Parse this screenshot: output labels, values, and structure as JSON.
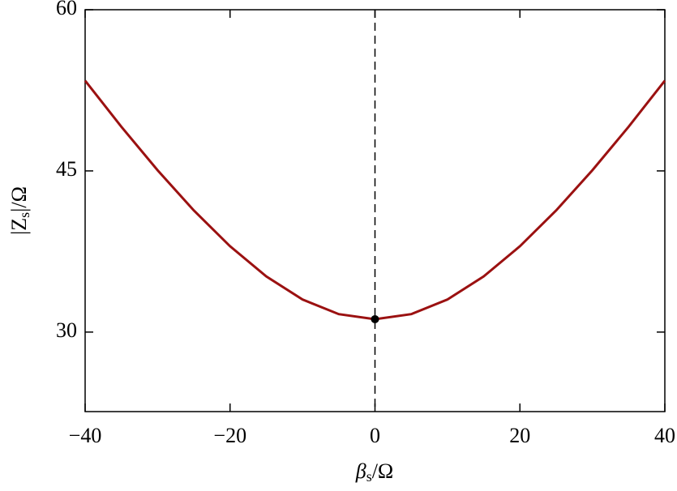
{
  "chart_data": {
    "type": "line",
    "xlabel": {
      "main": "β",
      "sub": "s",
      "rest": "/Ω"
    },
    "ylabel": {
      "pre": "|Z",
      "sub": "s",
      "rest": "|/Ω"
    },
    "x": [
      -40,
      -35,
      -30,
      -25,
      -20,
      -15,
      -10,
      -5,
      0,
      5,
      10,
      15,
      20,
      25,
      30,
      35,
      40
    ],
    "series": [
      {
        "color": "#9b1111",
        "values": [
          53.4,
          49.11,
          45.06,
          41.32,
          37.99,
          35.18,
          33.03,
          31.67,
          31.2,
          31.67,
          33.03,
          35.18,
          37.99,
          41.32,
          45.06,
          49.11,
          53.4
        ]
      }
    ],
    "point": {
      "x": 0,
      "y": 31.2,
      "color": "#000000"
    },
    "vline": 0,
    "xlim": [
      -40,
      40
    ],
    "ylim": [
      22.6,
      60
    ],
    "xticks": [
      {
        "value": -40,
        "label": "−40"
      },
      {
        "value": -20,
        "label": "−20"
      },
      0,
      20,
      40
    ],
    "yticks": [
      30,
      45,
      60
    ]
  }
}
